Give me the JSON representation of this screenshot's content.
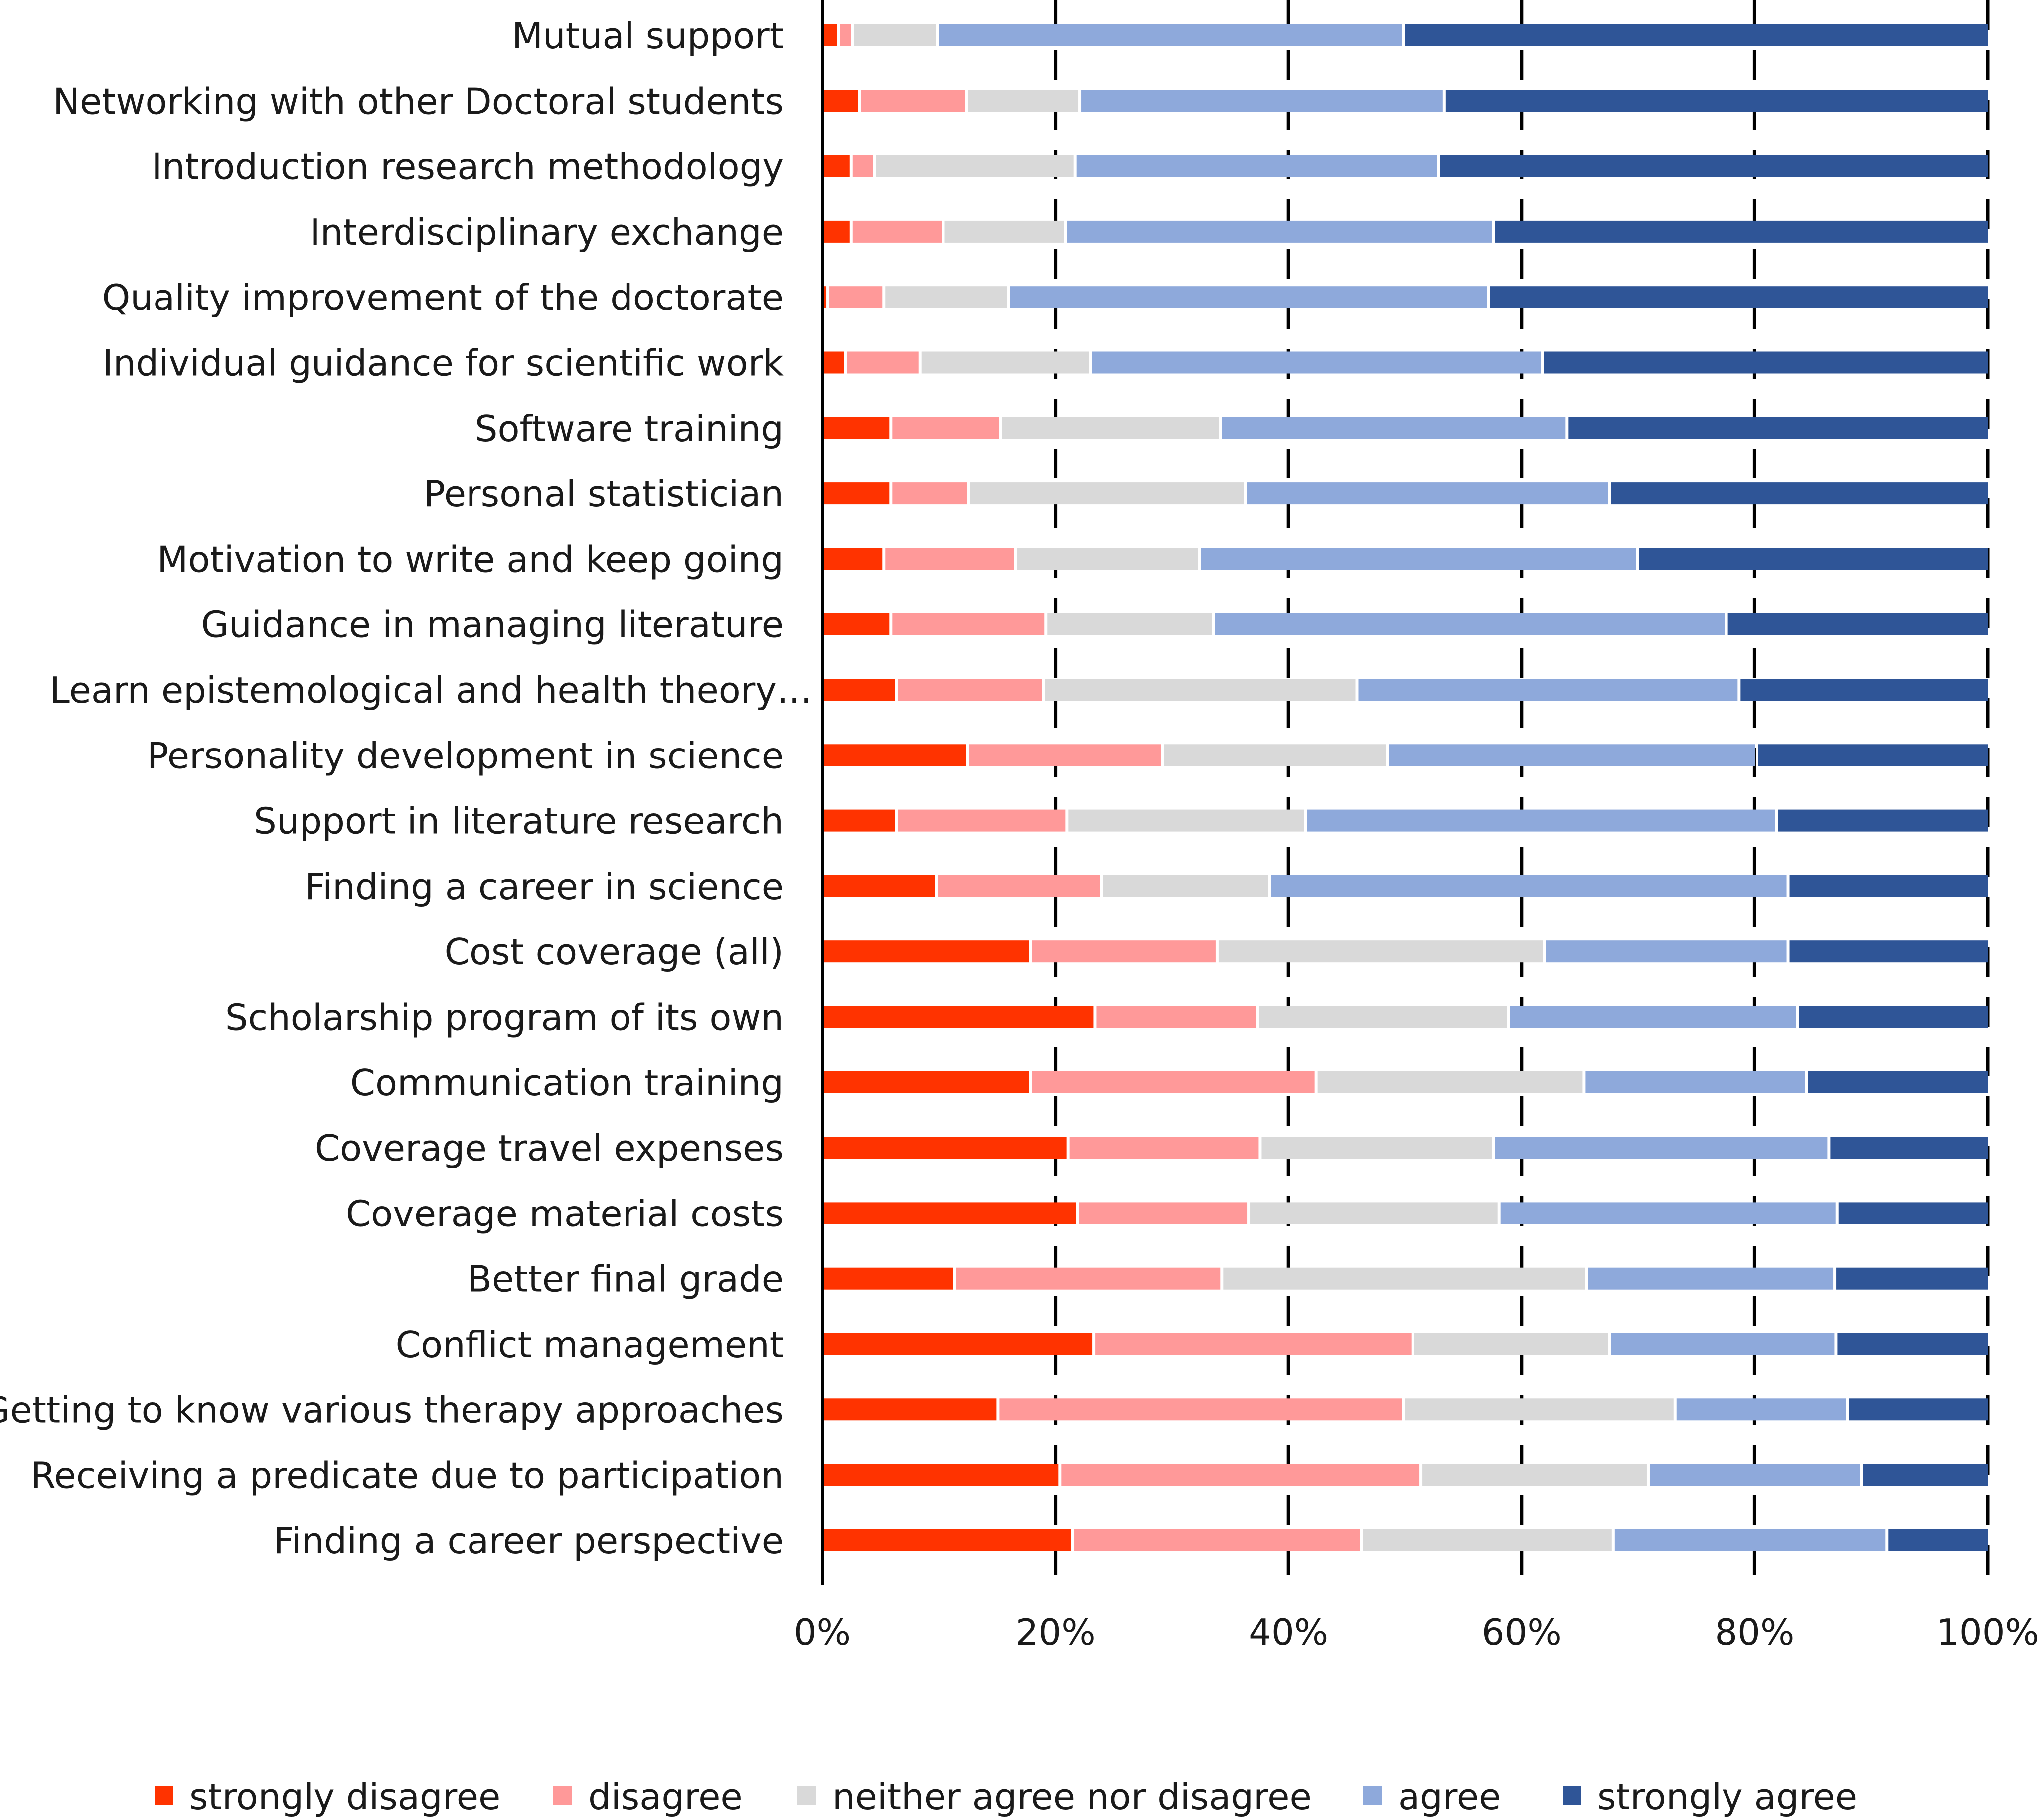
{
  "chart_data": {
    "type": "bar",
    "orientation": "horizontal",
    "stacked": true,
    "normalized_percent": true,
    "title": "",
    "xlabel": "",
    "ylabel": "",
    "xlim": [
      0,
      100
    ],
    "x_ticks": [
      "0%",
      "20%",
      "40%",
      "60%",
      "80%",
      "100%"
    ],
    "grid": "dashed vertical lines at 20% intervals",
    "legend_position": "bottom",
    "categories": [
      "Mutual support",
      "Networking with other Doctoral students",
      "Introduction research methodology",
      "Interdisciplinary exchange",
      "Quality improvement of the doctorate",
      "Individual guidance for scientific work",
      "Software training",
      "Personal statistician",
      "Motivation to write and keep going",
      "Guidance in managing literature",
      "Learn epistemological and health theory…",
      "Personality development in science",
      "Support in literature research",
      "Finding a career in science",
      "Cost coverage (all)",
      "Scholarship program of its own",
      "Communication training",
      "Coverage travel expenses",
      "Coverage material costs",
      "Better final grade",
      "Conflict management",
      "Getting to know various therapy approaches",
      "Receiving a predicate due to participation",
      "Finding a career perspective"
    ],
    "series": [
      {
        "name": "strongly disagree",
        "color": "#FF3300",
        "values": [
          1.5,
          3.3,
          2.6,
          2.6,
          0.6,
          2.1,
          6.0,
          6.0,
          5.4,
          6.0,
          6.5,
          12.6,
          6.5,
          9.9,
          18.0,
          23.5,
          18.0,
          21.2,
          22.0,
          11.5,
          23.4,
          15.2,
          20.5,
          21.6
        ]
      },
      {
        "name": "disagree",
        "color": "#FF9999",
        "values": [
          1.2,
          9.2,
          2.0,
          7.9,
          4.8,
          6.4,
          9.4,
          6.7,
          11.3,
          13.3,
          12.6,
          16.7,
          14.6,
          14.2,
          16.0,
          14.0,
          24.5,
          16.5,
          14.7,
          22.9,
          27.4,
          34.8,
          31.0,
          24.8
        ]
      },
      {
        "name": "neither agree nor disagree",
        "color": "#D9D9D9",
        "values": [
          7.3,
          9.7,
          17.2,
          10.5,
          10.7,
          14.6,
          18.9,
          23.7,
          15.8,
          14.4,
          26.9,
          19.3,
          20.5,
          14.4,
          28.1,
          21.5,
          23.0,
          20.0,
          21.5,
          31.3,
          16.9,
          23.3,
          19.5,
          21.6
        ]
      },
      {
        "name": "agree",
        "color": "#8EA9DB",
        "values": [
          40.0,
          31.3,
          31.2,
          36.7,
          41.2,
          38.8,
          29.7,
          31.3,
          37.6,
          44.0,
          32.8,
          31.7,
          40.4,
          44.5,
          20.9,
          24.8,
          19.1,
          28.8,
          29.0,
          21.3,
          19.4,
          14.8,
          18.3,
          23.5
        ]
      },
      {
        "name": "strongly agree",
        "color": "#2F5597",
        "values": [
          50.0,
          46.5,
          47.0,
          42.3,
          42.7,
          38.1,
          36.0,
          32.3,
          29.9,
          22.3,
          21.2,
          19.7,
          18.0,
          17.0,
          17.0,
          16.2,
          15.4,
          13.5,
          12.8,
          13.0,
          12.9,
          11.9,
          10.7,
          8.5
        ]
      }
    ]
  }
}
